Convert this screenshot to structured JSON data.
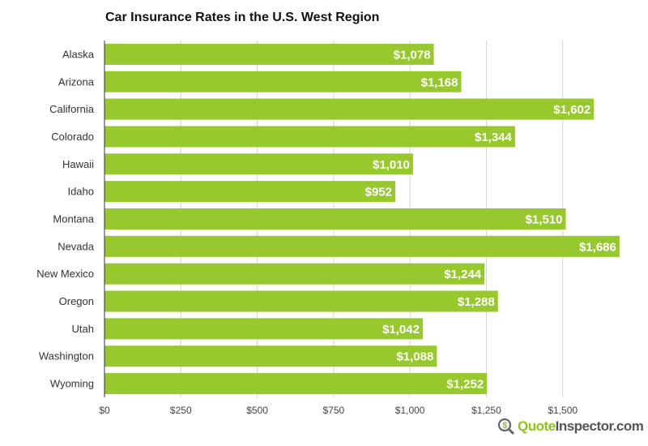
{
  "chart_data": {
    "type": "bar",
    "orientation": "horizontal",
    "title": "Car Insurance Rates in the U.S. West Region",
    "categories": [
      "Alaska",
      "Arizona",
      "California",
      "Colorado",
      "Hawaii",
      "Idaho",
      "Montana",
      "Nevada",
      "New Mexico",
      "Oregon",
      "Utah",
      "Washington",
      "Wyoming"
    ],
    "values": [
      1078,
      1168,
      1602,
      1344,
      1010,
      952,
      1510,
      1686,
      1244,
      1288,
      1042,
      1088,
      1252
    ],
    "data_labels": [
      "$1,078",
      "$1,168",
      "$1,602",
      "$1,344",
      "$1,010",
      "$952",
      "$1,510",
      "$1,686",
      "$1,244",
      "$1,288",
      "$1,042",
      "$1,088",
      "$1,252"
    ],
    "xticks": [
      0,
      250,
      500,
      750,
      1000,
      1250,
      1500
    ],
    "xtick_labels": [
      "$0",
      "$250",
      "$500",
      "$750",
      "$1,000",
      "$1,250",
      "$1,500"
    ],
    "xlim": [
      0,
      1750
    ],
    "grid": true,
    "bar_color": "#97c92e"
  },
  "logo": {
    "part1": "Quote",
    "part2": "Inspector.com",
    "icon": "dollar-magnifier-icon"
  }
}
